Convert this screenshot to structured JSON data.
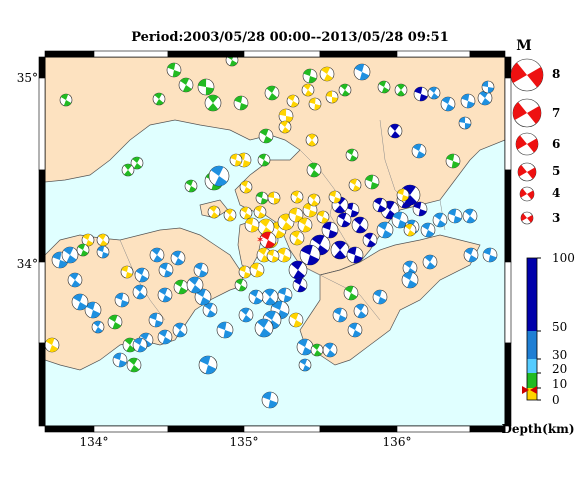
{
  "title": "Period:2003/05/28 00:00--2013/05/28 09:51",
  "axes": {
    "lon_labels": [
      "134°",
      "135°",
      "136°"
    ],
    "lat_labels": [
      "35°",
      "34°"
    ]
  },
  "magnitude_legend": {
    "header": "M",
    "items": [
      "8",
      "7",
      "6",
      "5",
      "4",
      "3"
    ]
  },
  "depth_legend": {
    "unit": "Depth(km)",
    "ticks": [
      "100",
      "50",
      "30",
      "20",
      "10",
      "0"
    ],
    "bands": [
      {
        "from": 0,
        "to": 10,
        "color": "#ffd400"
      },
      {
        "from": 10,
        "to": 20,
        "color": "#22bb22"
      },
      {
        "from": 20,
        "to": 30,
        "color": "#55ccff"
      },
      {
        "from": 30,
        "to": 50,
        "color": "#1f7fd4"
      },
      {
        "from": 50,
        "to": 100,
        "color": "#0000aa"
      }
    ]
  },
  "colors": {
    "land": "#fde2c0",
    "sea": "#e0ffff",
    "shallow": "#ffd400",
    "green": "#22bb22",
    "cyan": "#1e90e0",
    "deep": "#0000b0",
    "red": "#ee1111"
  }
}
